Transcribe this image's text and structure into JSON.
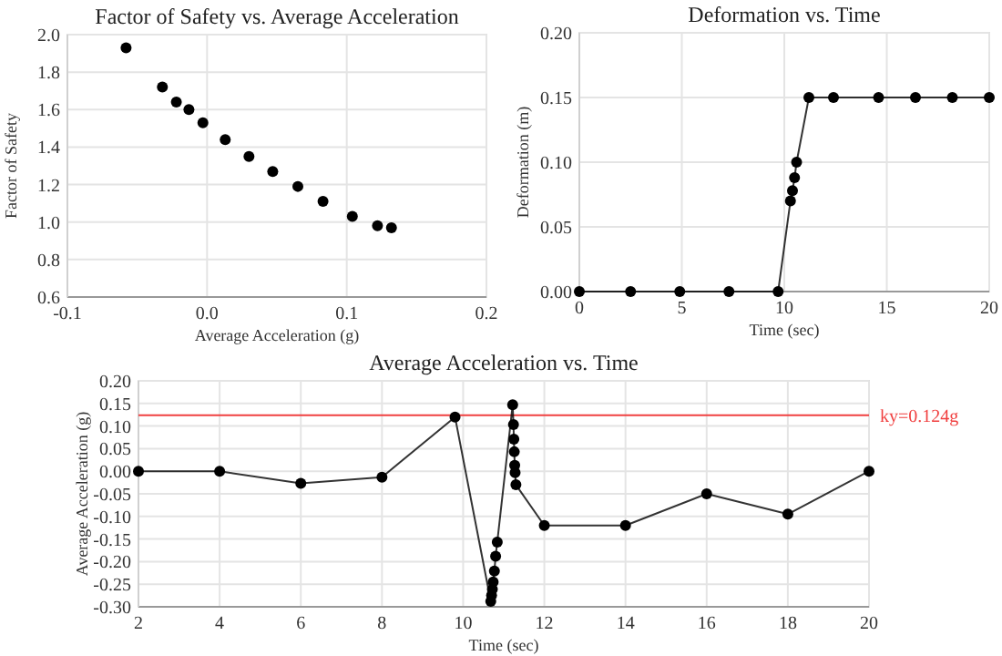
{
  "chart_data": [
    {
      "type": "scatter",
      "title": "Factor of Safety vs. Average Acceleration",
      "xlabel": "Average Acceleration (g)",
      "ylabel": "Factor of Safety",
      "marker": "circle",
      "grid": true,
      "xlim": [
        -0.1,
        0.2
      ],
      "xticks": [
        -0.1,
        {
          "value": 0,
          "label": "0.0"
        },
        0.1,
        0.2
      ],
      "ylim": [
        0.6,
        2.0
      ],
      "yticks": [
        0.6,
        0.8,
        {
          "value": 1,
          "label": "1.0"
        },
        1.2,
        1.4,
        1.6,
        1.8,
        {
          "value": 2,
          "label": "2.0"
        }
      ],
      "series": [
        {
          "color": "#000000",
          "x": [
            -0.058,
            -0.032,
            -0.022,
            -0.013,
            -0.003,
            0.013,
            0.03,
            0.047,
            0.065,
            0.083,
            0.104,
            0.122,
            0.132
          ],
          "values": [
            1.93,
            1.72,
            1.64,
            1.6,
            1.53,
            1.44,
            1.35,
            1.27,
            1.19,
            1.11,
            1.03,
            0.98,
            0.97
          ]
        }
      ]
    },
    {
      "type": "line",
      "title": "Deformation vs. Time",
      "xlabel": "Time (sec)",
      "ylabel": "Deformation (m)",
      "marker": "circle",
      "line_style": "solid",
      "grid": true,
      "xlim": [
        0,
        20
      ],
      "xticks": [
        0,
        5,
        10,
        15,
        20
      ],
      "ylim": [
        0,
        0.2
      ],
      "yticks": [
        {
          "value": 0,
          "label": "0.00"
        },
        0.05,
        {
          "value": 0.1,
          "label": "0.10"
        },
        0.15,
        {
          "value": 0.2,
          "label": "0.20"
        }
      ],
      "series": [
        {
          "color": "#000000",
          "x": [
            0,
            2.5,
            4.9,
            7.3,
            9.7,
            10.3,
            10.4,
            10.5,
            10.6,
            11.2,
            12.4,
            14.6,
            16.4,
            18.2,
            20
          ],
          "values": [
            0,
            0,
            0,
            0,
            0,
            0.07,
            0.078,
            0.088,
            0.1,
            0.15,
            0.15,
            0.15,
            0.15,
            0.15,
            0.15
          ]
        }
      ]
    },
    {
      "type": "line",
      "title": "Average Acceleration vs. Time",
      "xlabel": "Time (sec)",
      "ylabel": "Average Acceleration (g)",
      "marker": "circle",
      "line_style": "solid",
      "grid": true,
      "xlim": [
        2,
        20
      ],
      "xticks": [
        2,
        4,
        6,
        8,
        10,
        12,
        14,
        16,
        18,
        20
      ],
      "ylim": [
        -0.3,
        0.2
      ],
      "yticks": [
        {
          "value": -0.3,
          "label": "-0.30"
        },
        {
          "value": -0.25,
          "label": "-0.25"
        },
        {
          "value": -0.2,
          "label": "-0.20"
        },
        {
          "value": -0.15,
          "label": "-0.15"
        },
        {
          "value": -0.1,
          "label": "-0.10"
        },
        {
          "value": -0.05,
          "label": "-0.05"
        },
        {
          "value": 0,
          "label": "0.00"
        },
        {
          "value": 0.05,
          "label": "0.05"
        },
        {
          "value": 0.1,
          "label": "0.10"
        },
        {
          "value": 0.15,
          "label": "0.15"
        },
        {
          "value": 0.2,
          "label": "0.20"
        }
      ],
      "ref_lines": [
        {
          "axis": "y",
          "value": 0.124,
          "label": "ky=0.124g",
          "color": "#f04040"
        }
      ],
      "series": [
        {
          "color": "#000000",
          "x": [
            2,
            4,
            6,
            8,
            9.8,
            10.68,
            10.7,
            10.72,
            10.74,
            10.77,
            10.8,
            10.84,
            11.22,
            11.24,
            11.25,
            11.26,
            11.27,
            11.28,
            11.3,
            12,
            14,
            16,
            18,
            20
          ],
          "values": [
            0,
            0,
            -0.027,
            -0.013,
            0.12,
            -0.288,
            -0.275,
            -0.261,
            -0.245,
            -0.221,
            -0.188,
            -0.157,
            0.147,
            0.103,
            0.071,
            0.043,
            0.013,
            -0.003,
            -0.03,
            -0.12,
            -0.12,
            -0.05,
            -0.095,
            0
          ]
        }
      ]
    }
  ]
}
